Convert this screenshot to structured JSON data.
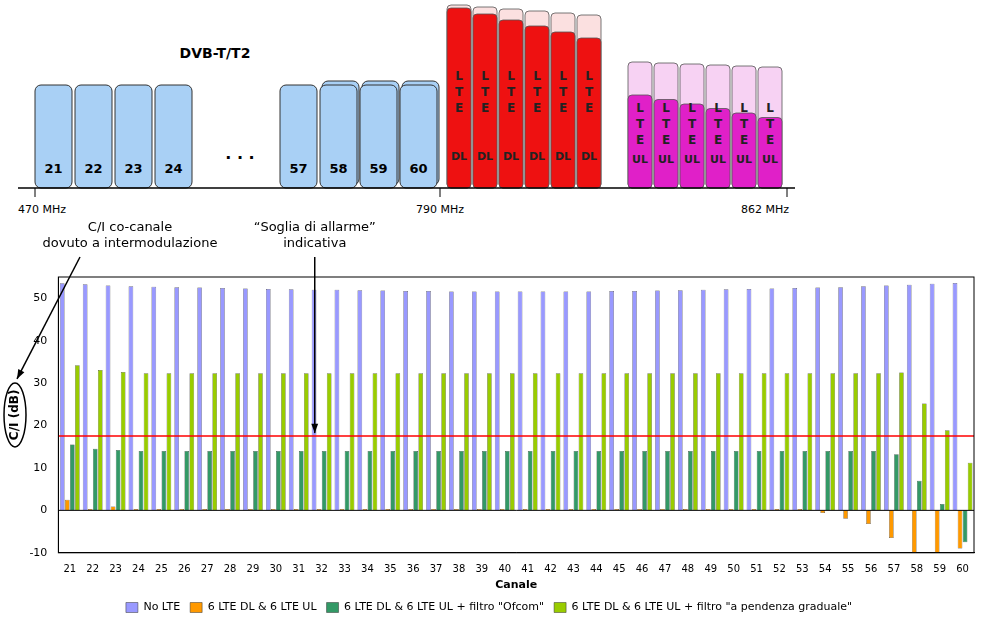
{
  "spectrum": {
    "title": "DVB-T/T2",
    "channels_low": [
      "21",
      "22",
      "23",
      "24"
    ],
    "gap": "· · ·",
    "channels_high": [
      "57",
      "58",
      "59",
      "60"
    ],
    "dvb_color": "#a9d0f5",
    "dl": {
      "color": "#ee1111",
      "blocks": [
        {
          "text": "LTE",
          "band": "DL"
        },
        {
          "text": "LTE",
          "band": "DL"
        },
        {
          "text": "LTE",
          "band": "DL"
        },
        {
          "text": "LTE",
          "band": "DL"
        },
        {
          "text": "LTE",
          "band": "DL"
        },
        {
          "text": "LTE",
          "band": "DL"
        }
      ]
    },
    "ul": {
      "color": "#e020c8",
      "blocks": [
        {
          "text": "LTE",
          "band": "UL"
        },
        {
          "text": "LTE",
          "band": "UL"
        },
        {
          "text": "LTE",
          "band": "UL"
        },
        {
          "text": "LTE",
          "band": "UL"
        },
        {
          "text": "LTE",
          "band": "UL"
        },
        {
          "text": "LTE",
          "band": "UL"
        }
      ]
    },
    "frequencies": [
      "470 MHz",
      "790 MHz",
      "862 MHz"
    ]
  },
  "chart_data": {
    "type": "bar",
    "x_label": "Canale",
    "y_label": "C/I (dB)",
    "ylabel_note": [
      "C/I co-canale",
      "dovuto a intermodulazione"
    ],
    "reference_line": {
      "value": 17.5,
      "color": "#ff0000",
      "label": [
        "“Soglia di allarme”",
        "indicativa"
      ]
    },
    "categories": [
      "21",
      "22",
      "23",
      "24",
      "25",
      "26",
      "27",
      "28",
      "29",
      "30",
      "31",
      "32",
      "33",
      "34",
      "35",
      "36",
      "37",
      "38",
      "39",
      "40",
      "41",
      "42",
      "43",
      "44",
      "45",
      "46",
      "47",
      "48",
      "49",
      "50",
      "51",
      "52",
      "53",
      "54",
      "55",
      "56",
      "57",
      "58",
      "59",
      "60"
    ],
    "series": [
      {
        "name": "No LTE",
        "color": "#9999ff",
        "values": [
          53.5,
          53.3,
          53.0,
          52.8,
          52.7,
          52.6,
          52.5,
          52.4,
          52.3,
          52.2,
          52.1,
          52.0,
          52.0,
          51.9,
          51.8,
          51.7,
          51.7,
          51.6,
          51.6,
          51.6,
          51.6,
          51.6,
          51.6,
          51.6,
          51.7,
          51.7,
          51.8,
          51.9,
          52.0,
          52.1,
          52.2,
          52.3,
          52.4,
          52.5,
          52.6,
          52.8,
          53.0,
          53.2,
          53.4,
          53.6
        ]
      },
      {
        "name": "6 LTE DL & 6 LTE UL",
        "color": "#ff9900",
        "values": [
          2.5,
          0.3,
          0.9,
          0.3,
          0.3,
          0.3,
          0.3,
          0.3,
          0.3,
          0.3,
          0.3,
          0.3,
          0.3,
          0.3,
          0.3,
          0.3,
          0.3,
          0.3,
          0.3,
          0.3,
          0.3,
          0.3,
          0.3,
          0.3,
          0.3,
          0.3,
          0.3,
          0.3,
          0.3,
          0.3,
          0.3,
          0.3,
          0.3,
          -0.6,
          -2,
          -3.2,
          -6.5,
          -10,
          -10,
          -9
        ]
      },
      {
        "name": "6 LTE DL & 6 LTE UL + filtro \"Ofcom\"",
        "color": "#339966",
        "values": [
          15.5,
          14.5,
          14.2,
          14,
          14,
          14,
          14,
          14,
          14,
          14,
          14,
          14,
          14,
          14,
          14,
          14,
          14,
          14,
          14,
          14,
          14,
          14,
          14,
          14,
          14,
          14,
          14,
          14,
          14,
          14,
          14,
          14,
          14,
          14,
          14,
          14,
          13.2,
          7,
          1.5,
          -7.5
        ]
      },
      {
        "name": "6 LTE DL & 6 LTE UL + filtro \"a pendenza graduale\"",
        "color": "#99cc00",
        "values": [
          34.2,
          33.1,
          32.6,
          32.3,
          32.3,
          32.3,
          32.3,
          32.3,
          32.3,
          32.3,
          32.3,
          32.3,
          32.3,
          32.3,
          32.3,
          32.3,
          32.3,
          32.3,
          32.3,
          32.3,
          32.3,
          32.3,
          32.3,
          32.3,
          32.3,
          32.3,
          32.3,
          32.3,
          32.3,
          32.3,
          32.3,
          32.3,
          32.3,
          32.3,
          32.3,
          32.3,
          32.5,
          25.2,
          18.9,
          11.2
        ]
      }
    ],
    "ylim": [
      -10,
      55
    ],
    "yticks": [
      -10,
      0,
      10,
      20,
      30,
      40,
      50
    ],
    "grid": false,
    "legend": "bottom"
  }
}
